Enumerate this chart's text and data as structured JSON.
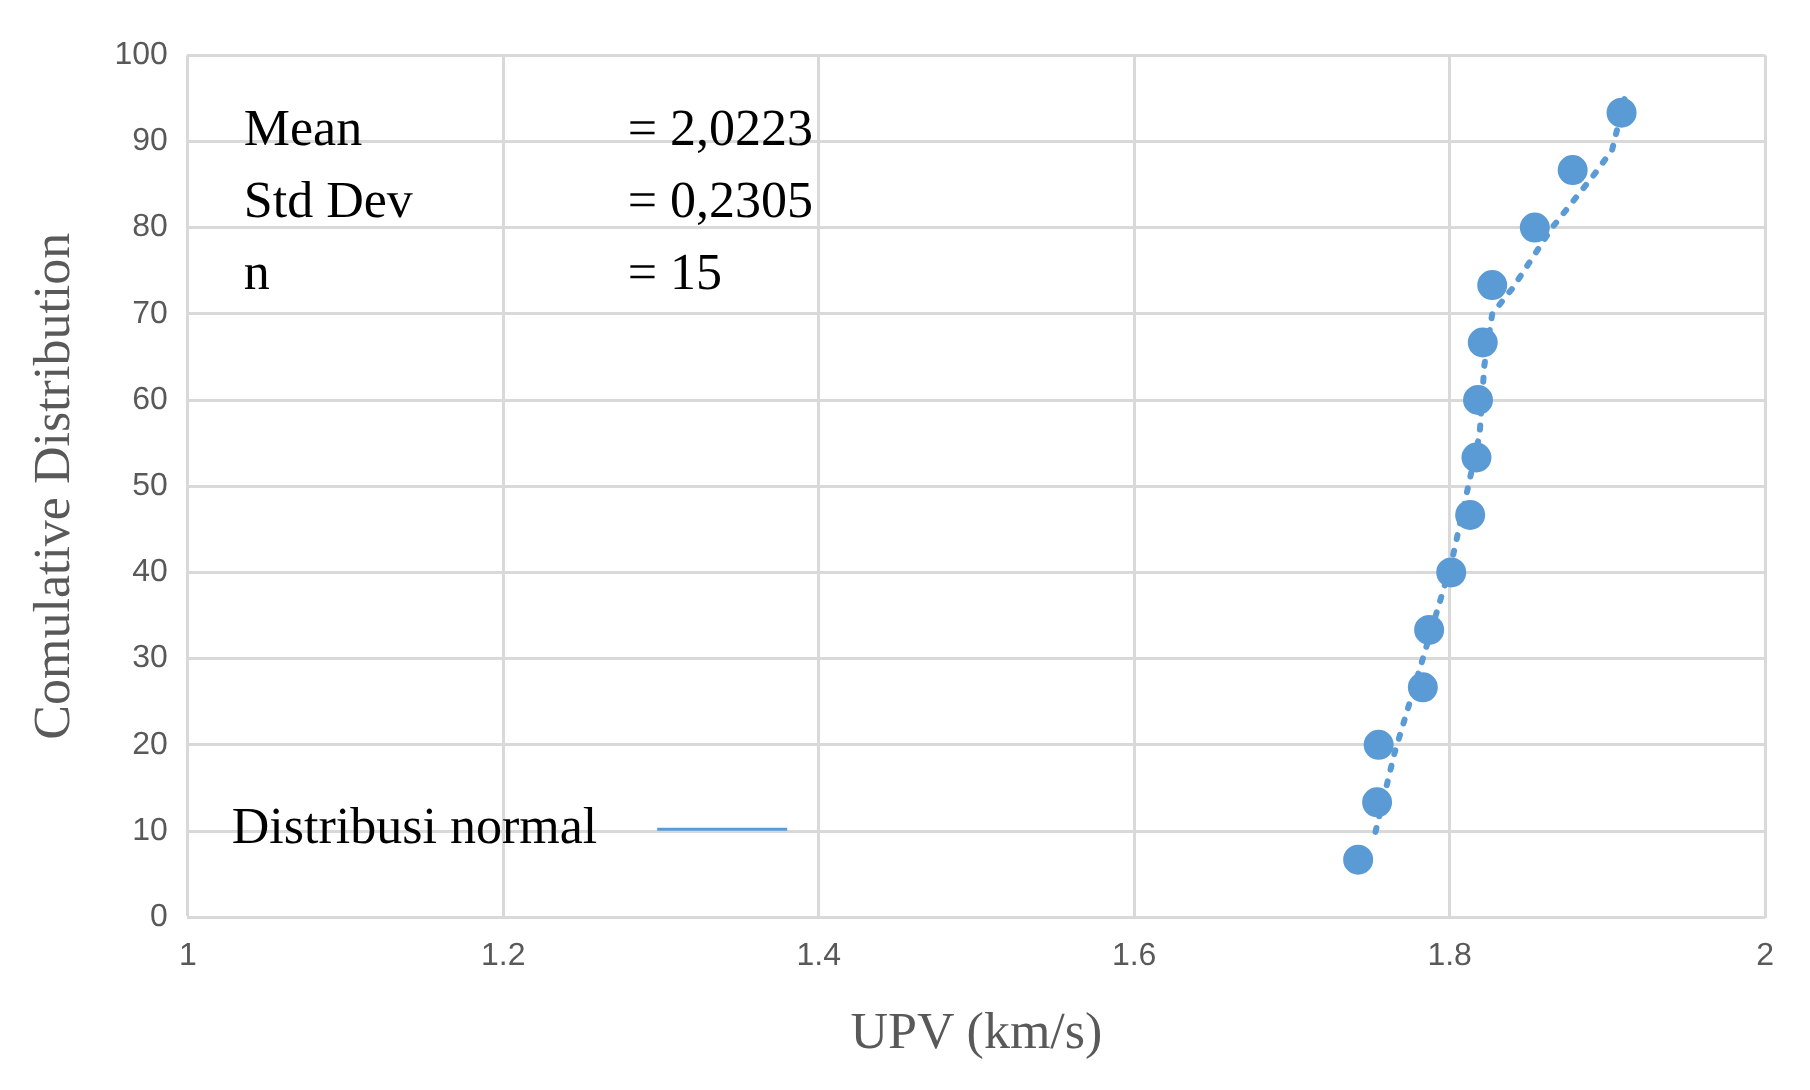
{
  "chart_data": {
    "type": "scatter",
    "xlabel": "UPV (km/s)",
    "ylabel": "Comulative Distribution",
    "xlim": [
      1,
      2
    ],
    "xticks": [
      1,
      1.2,
      1.4,
      1.6,
      1.8,
      2
    ],
    "ylim": [
      0,
      100
    ],
    "yticks": [
      0,
      10,
      20,
      30,
      40,
      50,
      60,
      70,
      80,
      90,
      100
    ],
    "grid": true,
    "legend": "bottom left",
    "marker": "circle",
    "annotations": [
      "Mean = 2,0223",
      "Std Dev = 0,2305",
      "n = 15"
    ],
    "series": [
      {
        "color": "#5b9bd5",
        "x": [
          1.742,
          1.754,
          1.755,
          1.783,
          1.787,
          1.801,
          1.813,
          1.817,
          1.818,
          1.821,
          1.827,
          1.854,
          1.878,
          1.909
        ],
        "values": [
          6.67,
          13.33,
          20,
          26.67,
          33.33,
          40,
          46.67,
          53.33,
          60,
          66.67,
          73.33,
          80,
          86.67,
          93.33
        ]
      },
      {
        "name": "Distribusi normal",
        "type": "line",
        "line_style": "dotted",
        "marker": "none",
        "color": "#5b9bd5",
        "x": [
          1.753,
          1.765,
          1.801,
          1.819,
          1.822,
          1.827,
          1.84,
          1.865,
          1.891,
          1.903,
          1.911
        ],
        "values": [
          9.9,
          19,
          41,
          56,
          64,
          70,
          73,
          80,
          86,
          89,
          95
        ]
      }
    ]
  }
}
